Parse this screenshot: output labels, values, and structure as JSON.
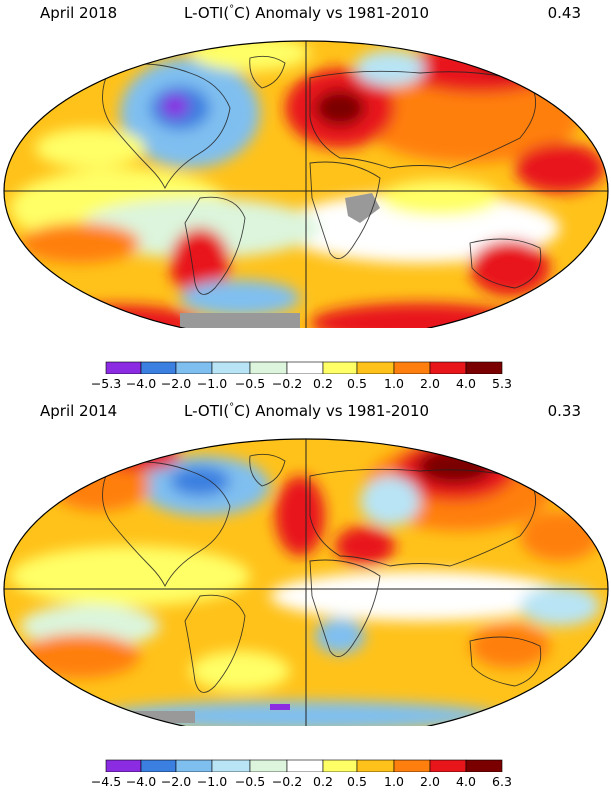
{
  "maps": [
    {
      "month_label": "April 2018",
      "title_prefix": "L-OTI(",
      "title_degree": "°",
      "title_suffix": "C) Anomaly vs 1981-2010",
      "global_mean": "0.43",
      "colorbar": {
        "ticks": [
          "−5.3",
          "−4.0",
          "−2.0",
          "−1.0",
          "−0.5",
          "−0.2",
          "0.2",
          "0.5",
          "1.0",
          "2.0",
          "4.0",
          "5.3"
        ],
        "colors": [
          "#8b2be2",
          "#3b7fe0",
          "#7fbff0",
          "#b8e4f5",
          "#dcf5dc",
          "#ffffff",
          "#ffff66",
          "#ffc21a",
          "#ff7f0e",
          "#e8161b",
          "#7a0000"
        ]
      }
    },
    {
      "month_label": "April 2014",
      "title_prefix": "L-OTI(",
      "title_degree": "°",
      "title_suffix": "C) Anomaly vs 1981-2010",
      "global_mean": "0.33",
      "colorbar": {
        "ticks": [
          "−4.5",
          "−4.0",
          "−2.0",
          "−1.0",
          "−0.5",
          "−0.2",
          "0.2",
          "0.5",
          "1.0",
          "2.0",
          "4.0",
          "6.3"
        ],
        "colors": [
          "#8b2be2",
          "#3b7fe0",
          "#7fbff0",
          "#b8e4f5",
          "#dcf5dc",
          "#ffffff",
          "#ffff66",
          "#ffc21a",
          "#ff7f0e",
          "#e8161b",
          "#7a0000"
        ]
      }
    }
  ]
}
